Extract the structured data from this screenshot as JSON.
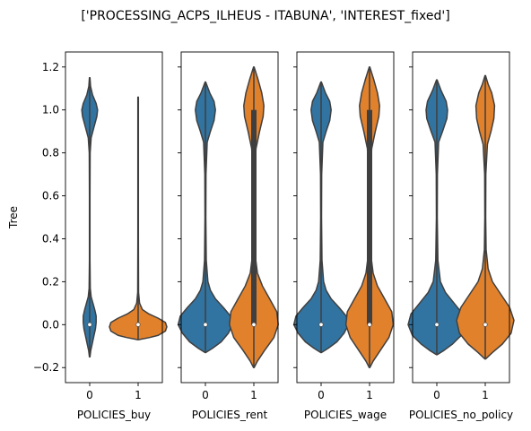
{
  "figure_title": "['PROCESSING_ACPS_ILHEUS - ITABUNA', 'INTEREST_fixed']",
  "chart_data": {
    "type": "violin",
    "suptitle": "['PROCESSING_ACPS_ILHEUS - ITABUNA', 'INTEREST_fixed']",
    "ylabel": "Tree",
    "ylim": [
      -0.27,
      1.27
    ],
    "yticks": [
      -0.2,
      0.0,
      0.2,
      0.4,
      0.6,
      0.8,
      1.0,
      1.2
    ],
    "ytick_labels": [
      "−0.2",
      "0.0",
      "0.2",
      "0.4",
      "0.6",
      "0.8",
      "1.0",
      "1.2"
    ],
    "shared_y": true,
    "categories": [
      "0",
      "1"
    ],
    "colors": {
      "0": "#3274a1",
      "1": "#e1812c",
      "edge": "#3f3f3f"
    },
    "panels": [
      {
        "xlabel": "POLICIES_buy",
        "violins": [
          {
            "category": "0",
            "min": -0.15,
            "max": 1.15,
            "median": 0.0,
            "q1": 0.0,
            "q3": 0.0,
            "profile": [
              [
                -0.15,
                0
              ],
              [
                -0.12,
                0.015
              ],
              [
                -0.09,
                0.035
              ],
              [
                -0.05,
                0.06
              ],
              [
                -0.02,
                0.08
              ],
              [
                0.01,
                0.09
              ],
              [
                0.04,
                0.09
              ],
              [
                0.07,
                0.07
              ],
              [
                0.1,
                0.045
              ],
              [
                0.13,
                0.02
              ],
              [
                0.17,
                0.008
              ],
              [
                0.3,
                0.003
              ],
              [
                0.6,
                0.002
              ],
              [
                0.8,
                0.006
              ],
              [
                0.87,
                0.02
              ],
              [
                0.92,
                0.06
              ],
              [
                0.97,
                0.1
              ],
              [
                1.0,
                0.11
              ],
              [
                1.03,
                0.09
              ],
              [
                1.07,
                0.04
              ],
              [
                1.11,
                0.012
              ],
              [
                1.15,
                0
              ]
            ]
          },
          {
            "category": "1",
            "min": -0.07,
            "max": 1.06,
            "median": 0.0,
            "q1": 0.0,
            "q3": 0.0,
            "profile": [
              [
                -0.07,
                0
              ],
              [
                -0.06,
                0.16
              ],
              [
                -0.05,
                0.28
              ],
              [
                -0.03,
                0.38
              ],
              [
                -0.01,
                0.4
              ],
              [
                0.01,
                0.38
              ],
              [
                0.03,
                0.28
              ],
              [
                0.05,
                0.15
              ],
              [
                0.07,
                0.06
              ],
              [
                0.1,
                0.02
              ],
              [
                0.15,
                0.006
              ],
              [
                0.4,
                0.003
              ],
              [
                0.8,
                0.003
              ],
              [
                1.0,
                0.003
              ],
              [
                1.06,
                0
              ]
            ]
          }
        ]
      },
      {
        "xlabel": "POLICIES_rent",
        "violins": [
          {
            "category": "0",
            "min": -0.13,
            "max": 1.13,
            "median": 0.0,
            "q1": 0.0,
            "q3": 0.0,
            "profile": [
              [
                -0.13,
                0
              ],
              [
                -0.11,
                0.1
              ],
              [
                -0.08,
                0.22
              ],
              [
                -0.04,
                0.32
              ],
              [
                0.0,
                0.38
              ],
              [
                0.04,
                0.35
              ],
              [
                0.08,
                0.25
              ],
              [
                0.12,
                0.14
              ],
              [
                0.16,
                0.07
              ],
              [
                0.2,
                0.035
              ],
              [
                0.3,
                0.012
              ],
              [
                0.5,
                0.006
              ],
              [
                0.7,
                0.008
              ],
              [
                0.85,
                0.025
              ],
              [
                0.9,
                0.07
              ],
              [
                0.95,
                0.12
              ],
              [
                1.0,
                0.14
              ],
              [
                1.04,
                0.12
              ],
              [
                1.08,
                0.06
              ],
              [
                1.13,
                0
              ]
            ]
          },
          {
            "category": "1",
            "min": -0.2,
            "max": 1.2,
            "median": 0.0,
            "q1": 0.0,
            "q3": 1.0,
            "profile": [
              [
                -0.2,
                0
              ],
              [
                -0.17,
                0.05
              ],
              [
                -0.12,
                0.15
              ],
              [
                -0.06,
                0.28
              ],
              [
                0.0,
                0.34
              ],
              [
                0.06,
                0.32
              ],
              [
                0.12,
                0.22
              ],
              [
                0.18,
                0.12
              ],
              [
                0.24,
                0.05
              ],
              [
                0.32,
                0.02
              ],
              [
                0.5,
                0.01
              ],
              [
                0.7,
                0.012
              ],
              [
                0.82,
                0.03
              ],
              [
                0.9,
                0.08
              ],
              [
                0.97,
                0.13
              ],
              [
                1.02,
                0.14
              ],
              [
                1.08,
                0.11
              ],
              [
                1.14,
                0.06
              ],
              [
                1.2,
                0
              ]
            ]
          }
        ]
      },
      {
        "xlabel": "POLICIES_wage",
        "violins": [
          {
            "category": "0",
            "min": -0.13,
            "max": 1.13,
            "median": 0.0,
            "q1": 0.0,
            "q3": 0.0,
            "profile": [
              [
                -0.13,
                0
              ],
              [
                -0.11,
                0.1
              ],
              [
                -0.08,
                0.22
              ],
              [
                -0.04,
                0.32
              ],
              [
                0.0,
                0.38
              ],
              [
                0.04,
                0.35
              ],
              [
                0.08,
                0.25
              ],
              [
                0.12,
                0.14
              ],
              [
                0.16,
                0.07
              ],
              [
                0.2,
                0.035
              ],
              [
                0.3,
                0.012
              ],
              [
                0.5,
                0.006
              ],
              [
                0.7,
                0.008
              ],
              [
                0.85,
                0.025
              ],
              [
                0.9,
                0.07
              ],
              [
                0.95,
                0.12
              ],
              [
                1.0,
                0.14
              ],
              [
                1.04,
                0.12
              ],
              [
                1.08,
                0.06
              ],
              [
                1.13,
                0
              ]
            ]
          },
          {
            "category": "1",
            "min": -0.2,
            "max": 1.2,
            "median": 0.0,
            "q1": 0.0,
            "q3": 1.0,
            "profile": [
              [
                -0.2,
                0
              ],
              [
                -0.17,
                0.05
              ],
              [
                -0.12,
                0.15
              ],
              [
                -0.06,
                0.27
              ],
              [
                0.0,
                0.33
              ],
              [
                0.06,
                0.31
              ],
              [
                0.12,
                0.21
              ],
              [
                0.18,
                0.11
              ],
              [
                0.24,
                0.05
              ],
              [
                0.32,
                0.02
              ],
              [
                0.5,
                0.01
              ],
              [
                0.7,
                0.012
              ],
              [
                0.82,
                0.03
              ],
              [
                0.9,
                0.08
              ],
              [
                0.97,
                0.13
              ],
              [
                1.02,
                0.14
              ],
              [
                1.08,
                0.11
              ],
              [
                1.14,
                0.06
              ],
              [
                1.2,
                0
              ]
            ]
          }
        ]
      },
      {
        "xlabel": "POLICIES_no_policy",
        "violins": [
          {
            "category": "0",
            "min": -0.14,
            "max": 1.14,
            "median": 0.0,
            "q1": 0.0,
            "q3": 0.0,
            "profile": [
              [
                -0.14,
                0
              ],
              [
                -0.12,
                0.1
              ],
              [
                -0.09,
                0.22
              ],
              [
                -0.05,
                0.34
              ],
              [
                0.0,
                0.4
              ],
              [
                0.05,
                0.36
              ],
              [
                0.1,
                0.24
              ],
              [
                0.15,
                0.12
              ],
              [
                0.2,
                0.05
              ],
              [
                0.3,
                0.015
              ],
              [
                0.5,
                0.006
              ],
              [
                0.7,
                0.008
              ],
              [
                0.85,
                0.025
              ],
              [
                0.9,
                0.08
              ],
              [
                0.96,
                0.14
              ],
              [
                1.0,
                0.15
              ],
              [
                1.04,
                0.13
              ],
              [
                1.09,
                0.06
              ],
              [
                1.14,
                0
              ]
            ]
          },
          {
            "category": "1",
            "min": -0.16,
            "max": 1.16,
            "median": 0.0,
            "q1": 0.0,
            "q3": 0.0,
            "profile": [
              [
                -0.16,
                0
              ],
              [
                -0.13,
                0.1
              ],
              [
                -0.09,
                0.24
              ],
              [
                -0.04,
                0.36
              ],
              [
                0.02,
                0.4
              ],
              [
                0.08,
                0.34
              ],
              [
                0.14,
                0.22
              ],
              [
                0.2,
                0.1
              ],
              [
                0.26,
                0.04
              ],
              [
                0.35,
                0.012
              ],
              [
                0.5,
                0.006
              ],
              [
                0.7,
                0.008
              ],
              [
                0.84,
                0.03
              ],
              [
                0.9,
                0.08
              ],
              [
                0.96,
                0.12
              ],
              [
                1.02,
                0.13
              ],
              [
                1.08,
                0.09
              ],
              [
                1.12,
                0.04
              ],
              [
                1.16,
                0
              ]
            ]
          }
        ]
      }
    ]
  }
}
